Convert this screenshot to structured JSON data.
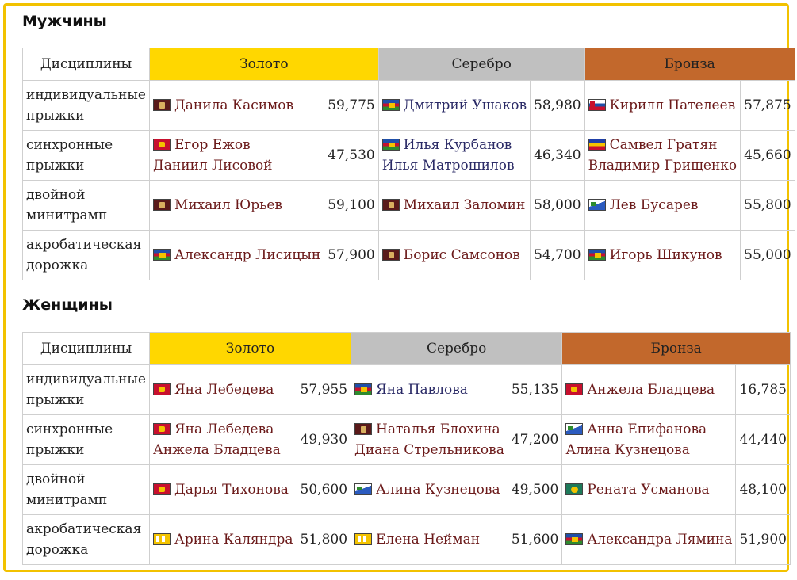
{
  "colors": {
    "gold": "#ffd700",
    "silver": "#c0c0c0",
    "bronze": "#c2682c",
    "frame": "#f2c200"
  },
  "headers": {
    "discipline": "Дисциплины",
    "gold": "Золото",
    "silver": "Серебро",
    "bronze": "Бронза"
  },
  "men": {
    "title": "Мужчины",
    "rows": [
      {
        "discipline": "индивидуальные прыжки",
        "gold": {
          "athletes": [
            "Данила Касимов"
          ],
          "flag": "dark-flag-icon",
          "score": "59,775"
        },
        "silver": {
          "athletes": [
            "Дмитрий Ушаков"
          ],
          "flag": "tricolor-flag-icon",
          "score": "58,980"
        },
        "bronze": {
          "athletes": [
            "Кирилл Пателеев"
          ],
          "flag": "striped-flag-icon",
          "score": "57,875"
        }
      },
      {
        "discipline": "синхронные прыжки",
        "gold": {
          "athletes": [
            "Егор Ежов",
            "Даниил Лисовой"
          ],
          "flag": "red-flag-icon",
          "score": "47,530"
        },
        "silver": {
          "athletes": [
            "Илья Курбанов",
            "Илья Матрошилов"
          ],
          "flag": "tricolor-flag-icon",
          "score": "46,340"
        },
        "bronze": {
          "athletes": [
            "Самвел Гратян",
            "Владимир Грищенко"
          ],
          "flag": "yellow-red-flag-icon",
          "score": "45,660"
        }
      },
      {
        "discipline": "двойной минитрамп",
        "gold": {
          "athletes": [
            "Михаил Юрьев"
          ],
          "flag": "dark-flag-icon",
          "score": "59,100"
        },
        "silver": {
          "athletes": [
            "Михаил Заломин"
          ],
          "flag": "dark-flag-icon",
          "score": "58,000"
        },
        "bronze": {
          "athletes": [
            "Лев Бусарев"
          ],
          "flag": "white-blue-flag-icon",
          "score": "55,800"
        }
      },
      {
        "discipline": "акробатическая дорожка",
        "gold": {
          "athletes": [
            "Александр Лисицын"
          ],
          "flag": "tricolor-flag-icon",
          "score": "57,900"
        },
        "silver": {
          "athletes": [
            "Борис Самсонов"
          ],
          "flag": "dark-flag-icon",
          "score": "54,700"
        },
        "bronze": {
          "athletes": [
            "Игорь Шикунов"
          ],
          "flag": "tricolor-flag-icon",
          "score": "55,000"
        }
      }
    ]
  },
  "women": {
    "title": "Женщины",
    "rows": [
      {
        "discipline": "индивидуальные прыжки",
        "gold": {
          "athletes": [
            "Яна Лебедева"
          ],
          "flag": "red-flag-icon",
          "score": "57,955"
        },
        "silver": {
          "athletes": [
            "Яна Павлова"
          ],
          "flag": "tricolor-flag-icon",
          "score": "55,135"
        },
        "bronze": {
          "athletes": [
            "Анжела Бладцева"
          ],
          "flag": "red-flag-icon",
          "score": "16,785"
        }
      },
      {
        "discipline": "синхронные прыжки",
        "gold": {
          "athletes": [
            "Яна Лебедева",
            "Анжела Бладцева"
          ],
          "flag": "red-flag-icon",
          "score": "49,930"
        },
        "silver": {
          "athletes": [
            "Наталья Блохина",
            "Диана Стрельникова"
          ],
          "flag": "dark-flag-icon",
          "score": "47,200"
        },
        "bronze": {
          "athletes": [
            "Анна Епифанова",
            "Алина Кузнецова"
          ],
          "flag": "white-blue-flag-icon",
          "score": "44,440"
        }
      },
      {
        "discipline": "двойной минитрамп",
        "gold": {
          "athletes": [
            "Дарья Тихонова"
          ],
          "flag": "red-flag-icon",
          "score": "50,600"
        },
        "silver": {
          "athletes": [
            "Алина Кузнецова"
          ],
          "flag": "white-blue-flag-icon",
          "score": "49,500"
        },
        "bronze": {
          "athletes": [
            "Рената Усманова"
          ],
          "flag": "green-flag-icon",
          "score": "48,100"
        }
      },
      {
        "discipline": "акробатическая дорожка",
        "gold": {
          "athletes": [
            "Арина Каляндра"
          ],
          "flag": "yellow-white-flag-icon",
          "score": "51,800"
        },
        "silver": {
          "athletes": [
            "Елена Нейман"
          ],
          "flag": "yellow-white-flag-icon",
          "score": "51,600"
        },
        "bronze": {
          "athletes": [
            "Александра Лямина"
          ],
          "flag": "tricolor-flag-icon",
          "score": "51,900"
        }
      }
    ]
  }
}
